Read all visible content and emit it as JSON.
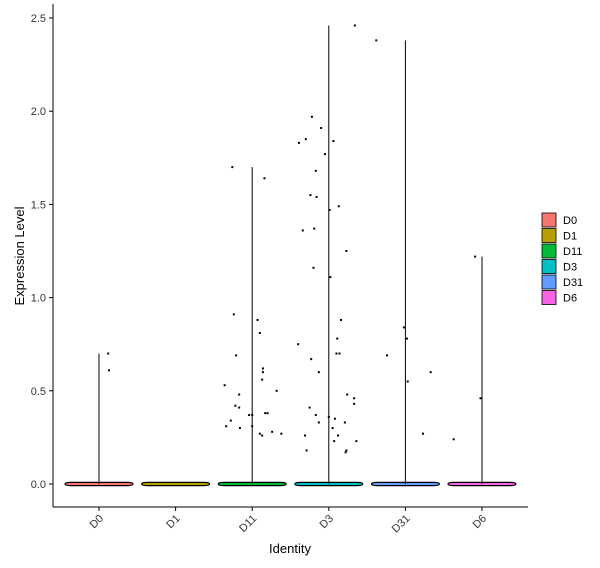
{
  "chart_data": {
    "type": "violin",
    "xlabel": "Identity",
    "ylabel": "Expression Level",
    "categories": [
      "D0",
      "D1",
      "D11",
      "D3",
      "D31",
      "D6"
    ],
    "colors": [
      "#F8766D",
      "#B79F00",
      "#00BA38",
      "#00BFC4",
      "#619CFF",
      "#F564E3"
    ],
    "ylim": [
      -0.12,
      2.55
    ],
    "yticks": [
      "0.0",
      "0.5",
      "1.0",
      "1.5",
      "2.0",
      "2.5"
    ],
    "ytick_values": [
      0,
      0.5,
      1.0,
      1.5,
      2.0,
      2.5
    ],
    "grid": false,
    "legend_position": "right",
    "legend": [
      "D0",
      "D1",
      "D11",
      "D3",
      "D31",
      "D6"
    ],
    "series": [
      {
        "category": "D0",
        "max": 0.7,
        "points": [
          [
            0.12,
            0.7
          ],
          [
            0.13,
            0.61
          ]
        ]
      },
      {
        "category": "D1",
        "max": 0.0,
        "points": []
      },
      {
        "category": "D11",
        "max": 1.7,
        "points": [
          [
            -0.26,
            1.7
          ],
          [
            0.16,
            1.64
          ],
          [
            -0.24,
            0.91
          ],
          [
            0.07,
            0.88
          ],
          [
            0.1,
            0.81
          ],
          [
            -0.21,
            0.69
          ],
          [
            0.14,
            0.62
          ],
          [
            0.14,
            0.6
          ],
          [
            0.13,
            0.56
          ],
          [
            -0.36,
            0.53
          ],
          [
            0.32,
            0.5
          ],
          [
            -0.17,
            0.48
          ],
          [
            -0.22,
            0.42
          ],
          [
            -0.17,
            0.41
          ],
          [
            -0.04,
            0.37
          ],
          [
            0.0,
            0.37
          ],
          [
            0.2,
            0.38
          ],
          [
            0.17,
            0.38
          ],
          [
            -0.28,
            0.34
          ],
          [
            -0.34,
            0.31
          ],
          [
            0.0,
            0.31
          ],
          [
            0.26,
            0.28
          ],
          [
            0.1,
            0.27
          ],
          [
            0.13,
            0.26
          ],
          [
            0.38,
            0.27
          ],
          [
            -0.16,
            0.3
          ]
        ]
      },
      {
        "category": "D3",
        "max": 2.46,
        "points": [
          [
            0.34,
            2.46
          ],
          [
            -0.22,
            1.97
          ],
          [
            -0.1,
            1.91
          ],
          [
            0.06,
            1.84
          ],
          [
            -0.3,
            1.85
          ],
          [
            -0.39,
            1.83
          ],
          [
            -0.05,
            1.77
          ],
          [
            -0.17,
            1.68
          ],
          [
            -0.24,
            1.55
          ],
          [
            -0.16,
            1.54
          ],
          [
            0.13,
            1.49
          ],
          [
            0.01,
            1.47
          ],
          [
            -0.34,
            1.36
          ],
          [
            -0.19,
            1.37
          ],
          [
            0.23,
            1.25
          ],
          [
            -0.2,
            1.16
          ],
          [
            0.02,
            1.11
          ],
          [
            0.16,
            0.88
          ],
          [
            0.11,
            0.78
          ],
          [
            -0.4,
            0.75
          ],
          [
            0.1,
            0.7
          ],
          [
            0.14,
            0.7
          ],
          [
            -0.23,
            0.67
          ],
          [
            -0.13,
            0.6
          ],
          [
            0.24,
            0.48
          ],
          [
            0.33,
            0.46
          ],
          [
            0.33,
            0.43
          ],
          [
            -0.25,
            0.41
          ],
          [
            -0.17,
            0.37
          ],
          [
            0.0,
            0.36
          ],
          [
            0.08,
            0.35
          ],
          [
            -0.13,
            0.33
          ],
          [
            0.21,
            0.33
          ],
          [
            0.05,
            0.3
          ],
          [
            0.12,
            0.26
          ],
          [
            0.07,
            0.23
          ],
          [
            -0.31,
            0.26
          ],
          [
            0.36,
            0.23
          ],
          [
            -0.29,
            0.18
          ],
          [
            0.22,
            0.17
          ],
          [
            0.23,
            0.18
          ]
        ]
      },
      {
        "category": "D31",
        "max": 2.38,
        "points": [
          [
            -0.38,
            2.38
          ],
          [
            -0.02,
            0.84
          ],
          [
            0.02,
            0.78
          ],
          [
            -0.24,
            0.69
          ],
          [
            0.33,
            0.6
          ],
          [
            0.03,
            0.55
          ],
          [
            0.23,
            0.27
          ]
        ]
      },
      {
        "category": "D6",
        "max": 1.22,
        "points": [
          [
            -0.09,
            1.22
          ],
          [
            -0.02,
            0.46
          ],
          [
            -0.37,
            0.24
          ]
        ]
      }
    ]
  }
}
